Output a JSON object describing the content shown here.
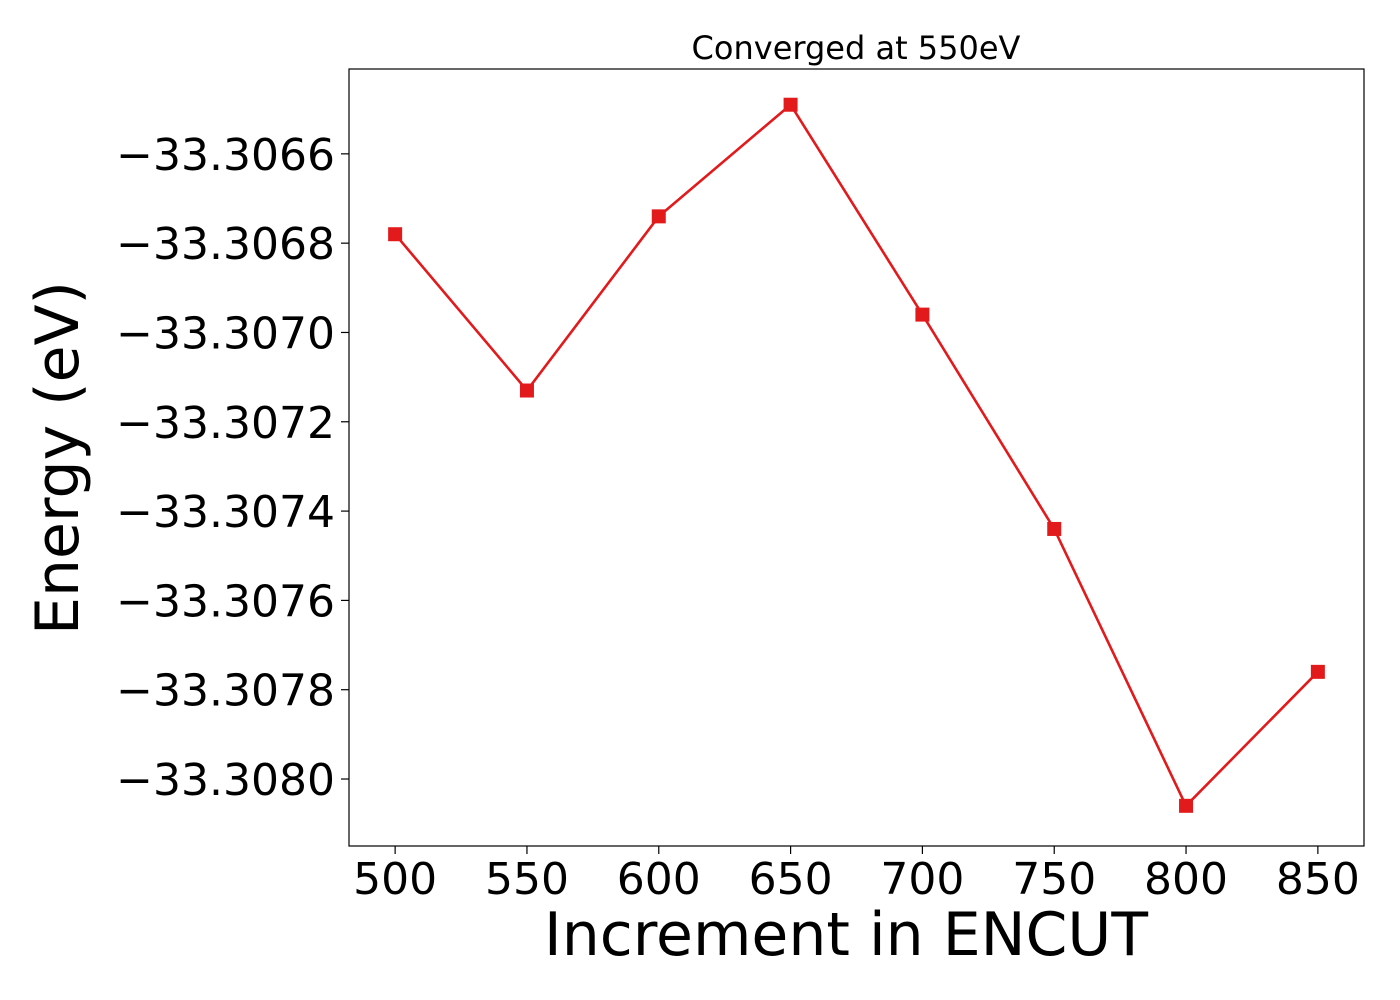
{
  "chart_data": {
    "type": "line",
    "title": "Converged at 550eV",
    "xlabel": "Increment in ENCUT",
    "ylabel": "Energy (eV)",
    "x": [
      500,
      550,
      600,
      650,
      700,
      750,
      800,
      850
    ],
    "series": [
      {
        "values": [
          -33.30678,
          -33.30713,
          -33.30674,
          -33.30649,
          -33.30696,
          -33.30744,
          -33.30806,
          -33.30776
        ],
        "color": "#e31a1c",
        "marker": "square"
      }
    ],
    "x_ticks": [
      500,
      550,
      600,
      650,
      700,
      750,
      800,
      850
    ],
    "x_tick_labels": [
      "500",
      "550",
      "600",
      "650",
      "700",
      "750",
      "800",
      "850"
    ],
    "y_ticks": [
      -33.3066,
      -33.3068,
      -33.307,
      -33.3072,
      -33.3074,
      -33.3076,
      -33.3078,
      -33.308
    ],
    "y_tick_labels": [
      "−33.3066",
      "−33.3068",
      "−33.3070",
      "−33.3072",
      "−33.3074",
      "−33.3076",
      "−33.3078",
      "−33.3080"
    ],
    "xlim": [
      482.5,
      867.5
    ],
    "ylim": [
      -33.30815,
      -33.30641
    ],
    "grid": false
  }
}
